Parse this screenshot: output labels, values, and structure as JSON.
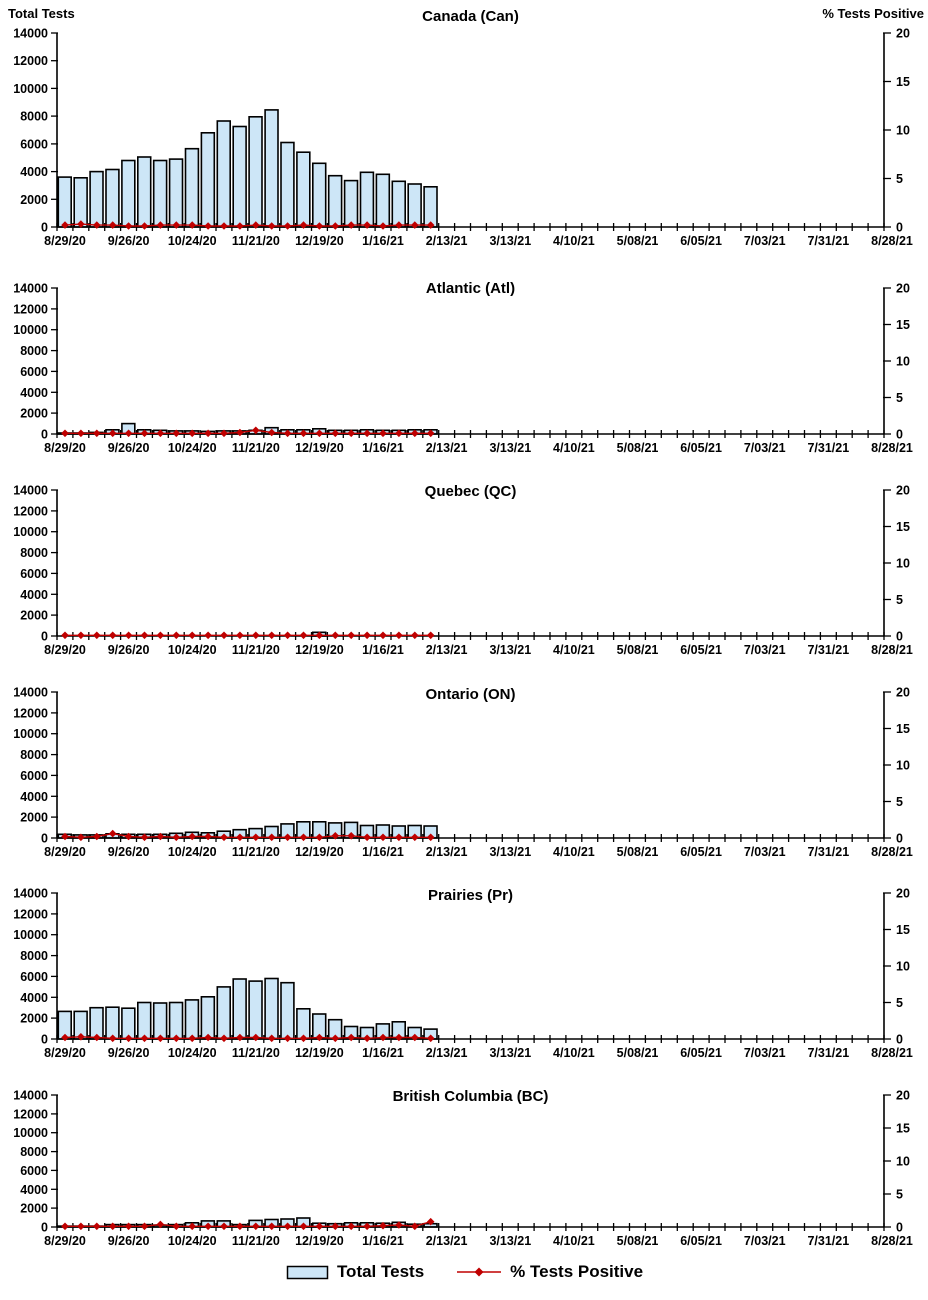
{
  "axes": {
    "left_label": "Total Tests",
    "right_label": "% Tests Positive",
    "left_ticks": [
      0,
      2000,
      4000,
      6000,
      8000,
      10000,
      12000,
      14000
    ],
    "right_ticks": [
      0,
      5,
      10,
      15,
      20
    ],
    "left_ylim": [
      0,
      14000
    ],
    "right_ylim": [
      0,
      20
    ],
    "x_labels": [
      "8/29/20",
      "9/26/20",
      "10/24/20",
      "11/21/20",
      "12/19/20",
      "1/16/21",
      "2/13/21",
      "3/13/21",
      "4/10/21",
      "5/08/21",
      "6/05/21",
      "7/03/21",
      "7/31/21",
      "8/28/21"
    ],
    "x_total_weeks": 52
  },
  "colors": {
    "bar_fill": "#CDE6F7",
    "bar_stroke": "#000000",
    "positivity_line": "#C00000",
    "text": "#000000",
    "background": "#FFFFFF"
  },
  "legend": {
    "items": [
      {
        "label": "Total Tests",
        "marker": "bar-swatch"
      },
      {
        "label": "% Tests Positive",
        "marker": "red-diamond-line"
      }
    ]
  },
  "chart_data": [
    {
      "type": "bar+line",
      "title": "Canada (Can)",
      "categories": [
        "8/29/20",
        "9/5/20",
        "9/12/20",
        "9/19/20",
        "9/26/20",
        "10/3/20",
        "10/10/20",
        "10/17/20",
        "10/24/20",
        "10/31/20",
        "11/7/20",
        "11/14/20",
        "11/21/20",
        "11/28/20",
        "12/5/20",
        "12/12/20",
        "12/19/20",
        "12/26/20",
        "1/2/21",
        "1/9/21",
        "1/16/21",
        "1/23/21",
        "1/30/21",
        "2/6/21"
      ],
      "series": [
        {
          "name": "Total Tests",
          "axis": "left",
          "values": [
            3600,
            3550,
            4000,
            4150,
            4800,
            5050,
            4800,
            4900,
            5650,
            6800,
            7650,
            7250,
            7950,
            8450,
            6100,
            5400,
            4600,
            3700,
            3350,
            3950,
            3800,
            3300,
            3100,
            2900
          ]
        },
        {
          "name": "% Tests Positive",
          "axis": "right",
          "values": [
            0.2,
            0.3,
            0.2,
            0.2,
            0.1,
            0.1,
            0.2,
            0.2,
            0.2,
            0.1,
            0.1,
            0.1,
            0.2,
            0.1,
            0.1,
            0.2,
            0.1,
            0.1,
            0.2,
            0.2,
            0.1,
            0.2,
            0.2,
            0.2
          ]
        }
      ]
    },
    {
      "type": "bar+line",
      "title": "Atlantic (Atl)",
      "categories": [
        "8/29/20",
        "9/5/20",
        "9/12/20",
        "9/19/20",
        "9/26/20",
        "10/3/20",
        "10/10/20",
        "10/17/20",
        "10/24/20",
        "10/31/20",
        "11/7/20",
        "11/14/20",
        "11/21/20",
        "11/28/20",
        "12/5/20",
        "12/12/20",
        "12/19/20",
        "12/26/20",
        "1/2/21",
        "1/9/21",
        "1/16/21",
        "1/23/21",
        "1/30/21",
        "2/6/21"
      ],
      "series": [
        {
          "name": "Total Tests",
          "axis": "left",
          "values": [
            100,
            100,
            150,
            400,
            1000,
            400,
            350,
            300,
            300,
            250,
            300,
            300,
            350,
            600,
            400,
            400,
            500,
            350,
            350,
            400,
            350,
            350,
            400,
            400
          ]
        },
        {
          "name": "% Tests Positive",
          "axis": "right",
          "values": [
            0.1,
            0.1,
            0.1,
            0.1,
            0.1,
            0.1,
            0.1,
            0.1,
            0.1,
            0.1,
            0.1,
            0.2,
            0.5,
            0.2,
            0.1,
            0.1,
            0.1,
            0.1,
            0.1,
            0.1,
            0.1,
            0.1,
            0.1,
            0.1
          ]
        }
      ]
    },
    {
      "type": "bar+line",
      "title": "Quebec (QC)",
      "categories": [
        "8/29/20",
        "9/5/20",
        "9/12/20",
        "9/19/20",
        "9/26/20",
        "10/3/20",
        "10/10/20",
        "10/17/20",
        "10/24/20",
        "10/31/20",
        "11/7/20",
        "11/14/20",
        "11/21/20",
        "11/28/20",
        "12/5/20",
        "12/12/20",
        "12/19/20",
        "12/26/20",
        "1/2/21",
        "1/9/21",
        "1/16/21",
        "1/23/21",
        "1/30/21",
        "2/6/21"
      ],
      "series": [
        {
          "name": "Total Tests",
          "axis": "left",
          "values": [
            0,
            0,
            0,
            0,
            0,
            0,
            0,
            0,
            0,
            0,
            0,
            0,
            0,
            0,
            0,
            0,
            350,
            0,
            0,
            0,
            0,
            0,
            0,
            0
          ]
        },
        {
          "name": "% Tests Positive",
          "axis": "right",
          "values": [
            0.1,
            0.1,
            0.1,
            0.1,
            0.1,
            0.1,
            0.1,
            0.1,
            0.1,
            0.1,
            0.1,
            0.1,
            0.1,
            0.1,
            0.1,
            0.1,
            0.1,
            0.1,
            0.1,
            0.1,
            0.1,
            0.1,
            0.1,
            0.1
          ]
        }
      ]
    },
    {
      "type": "bar+line",
      "title": "Ontario (ON)",
      "categories": [
        "8/29/20",
        "9/5/20",
        "9/12/20",
        "9/19/20",
        "9/26/20",
        "10/3/20",
        "10/10/20",
        "10/17/20",
        "10/24/20",
        "10/31/20",
        "11/7/20",
        "11/14/20",
        "11/21/20",
        "11/28/20",
        "12/5/20",
        "12/12/20",
        "12/19/20",
        "12/26/20",
        "1/2/21",
        "1/9/21",
        "1/16/21",
        "1/23/21",
        "1/30/21",
        "2/6/21"
      ],
      "series": [
        {
          "name": "Total Tests",
          "axis": "left",
          "values": [
            350,
            300,
            300,
            400,
            350,
            350,
            350,
            450,
            550,
            500,
            650,
            800,
            900,
            1100,
            1350,
            1550,
            1550,
            1450,
            1500,
            1200,
            1250,
            1150,
            1200,
            1150
          ]
        },
        {
          "name": "% Tests Positive",
          "axis": "right",
          "values": [
            0.2,
            0.1,
            0.2,
            0.6,
            0.2,
            0.1,
            0.2,
            0.1,
            0.2,
            0.2,
            0.1,
            0.1,
            0.1,
            0.1,
            0.1,
            0.1,
            0.1,
            0.3,
            0.3,
            0.1,
            0.1,
            0.1,
            0.1,
            0.1
          ]
        }
      ]
    },
    {
      "type": "bar+line",
      "title": "Prairies (Pr)",
      "categories": [
        "8/29/20",
        "9/5/20",
        "9/12/20",
        "9/19/20",
        "9/26/20",
        "10/3/20",
        "10/10/20",
        "10/17/20",
        "10/24/20",
        "10/31/20",
        "11/7/20",
        "11/14/20",
        "11/21/20",
        "11/28/20",
        "12/5/20",
        "12/12/20",
        "12/19/20",
        "12/26/20",
        "1/2/21",
        "1/9/21",
        "1/16/21",
        "1/23/21",
        "1/30/21",
        "2/6/21"
      ],
      "series": [
        {
          "name": "Total Tests",
          "axis": "left",
          "values": [
            2650,
            2650,
            3000,
            3050,
            2950,
            3500,
            3450,
            3500,
            3750,
            4050,
            5000,
            5750,
            5550,
            5800,
            5400,
            2900,
            2400,
            1850,
            1200,
            1100,
            1450,
            1650,
            1100,
            950
          ]
        },
        {
          "name": "% Tests Positive",
          "axis": "right",
          "values": [
            0.2,
            0.3,
            0.2,
            0.1,
            0.1,
            0.1,
            0.1,
            0.1,
            0.1,
            0.2,
            0.1,
            0.2,
            0.2,
            0.1,
            0.1,
            0.1,
            0.2,
            0.1,
            0.2,
            0.1,
            0.2,
            0.2,
            0.2,
            0.1
          ]
        }
      ]
    },
    {
      "type": "bar+line",
      "title": "British Columbia (BC)",
      "categories": [
        "8/29/20",
        "9/5/20",
        "9/12/20",
        "9/19/20",
        "9/26/20",
        "10/3/20",
        "10/10/20",
        "10/17/20",
        "10/24/20",
        "10/31/20",
        "11/7/20",
        "11/14/20",
        "11/21/20",
        "11/28/20",
        "12/5/20",
        "12/12/20",
        "12/19/20",
        "12/26/20",
        "1/2/21",
        "1/9/21",
        "1/16/21",
        "1/23/21",
        "1/30/21",
        "2/6/21"
      ],
      "series": [
        {
          "name": "Total Tests",
          "axis": "left",
          "values": [
            100,
            100,
            100,
            250,
            250,
            250,
            200,
            250,
            450,
            650,
            650,
            250,
            700,
            800,
            850,
            950,
            400,
            350,
            450,
            450,
            400,
            500,
            300,
            350
          ]
        },
        {
          "name": "% Tests Positive",
          "axis": "right",
          "values": [
            0.1,
            0.1,
            0.1,
            0.1,
            0.1,
            0.1,
            0.4,
            0.1,
            0.1,
            0.1,
            0.1,
            0.1,
            0.1,
            0.1,
            0.1,
            0.1,
            0.1,
            0.1,
            0.1,
            0.1,
            0.2,
            0.3,
            0.1,
            0.8
          ]
        }
      ]
    }
  ]
}
